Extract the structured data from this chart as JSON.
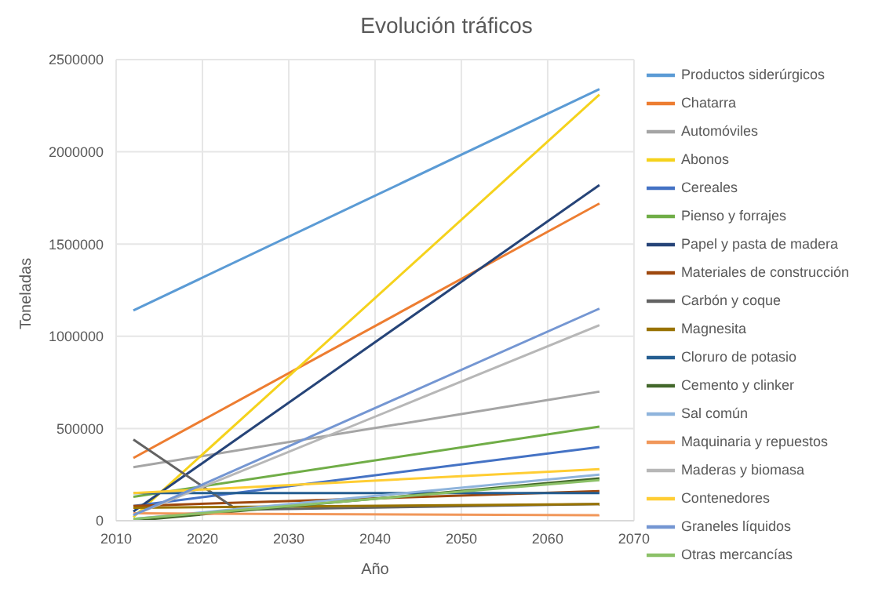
{
  "chart_data": {
    "type": "line",
    "title": "Evolución tráficos",
    "xlabel": "Año",
    "ylabel": "Toneladas",
    "x": [
      2012,
      2066
    ],
    "xlim": [
      2010,
      2070
    ],
    "xticks": [
      2010,
      2020,
      2030,
      2040,
      2050,
      2060,
      2070
    ],
    "ylim": [
      0,
      2500000
    ],
    "yticks": [
      0,
      500000,
      1000000,
      1500000,
      2000000,
      2500000
    ],
    "grid": true,
    "legend": "right",
    "marker": "none",
    "line_style": "solid",
    "series": [
      {
        "name": "Productos siderúrgicos",
        "color": "#5b9bd5",
        "values": [
          1140000,
          2340000
        ]
      },
      {
        "name": "Chatarra",
        "color": "#ed7d31",
        "values": [
          340000,
          1720000
        ]
      },
      {
        "name": "Automóviles",
        "color": "#a5a5a5",
        "values": [
          290000,
          700000
        ]
      },
      {
        "name": "Abonos",
        "color": "#f5d21c",
        "values": [
          20000,
          2310000
        ]
      },
      {
        "name": "Cereales",
        "color": "#4472c4",
        "values": [
          80000,
          400000
        ]
      },
      {
        "name": "Pienso y forrajes",
        "color": "#70ad47",
        "values": [
          130000,
          510000
        ]
      },
      {
        "name": "Papel y pasta de madera",
        "color": "#264478",
        "values": [
          50000,
          1820000
        ]
      },
      {
        "name": "Materiales de construcción",
        "color": "#9e480e",
        "values": [
          80000,
          160000
        ]
      },
      {
        "name": "Carbón y coque",
        "color": "#636363",
        "x": [
          2012,
          2024,
          2066
        ],
        "values": [
          440000,
          60000,
          90000
        ]
      },
      {
        "name": "Magnesita",
        "color": "#997300",
        "values": [
          70000,
          90000
        ]
      },
      {
        "name": "Cloruro de potasio",
        "color": "#255e91",
        "values": [
          150000,
          150000
        ]
      },
      {
        "name": "Cemento y clinker",
        "color": "#43682b",
        "values": [
          0,
          230000
        ]
      },
      {
        "name": "Sal común",
        "color": "#8fb4dc",
        "values": [
          10000,
          250000
        ]
      },
      {
        "name": "Maquinaria y repuestos",
        "color": "#f1975a",
        "values": [
          40000,
          30000
        ]
      },
      {
        "name": "Maderas y biomasa",
        "color": "#b7b7b7",
        "values": [
          30000,
          1060000
        ]
      },
      {
        "name": "Contenedores",
        "color": "#ffcd33",
        "values": [
          150000,
          280000
        ]
      },
      {
        "name": "Graneles líquidos",
        "color": "#7496d2",
        "values": [
          30000,
          1150000
        ]
      },
      {
        "name": "Otras mercancías",
        "color": "#8cc168",
        "values": [
          10000,
          220000
        ]
      }
    ]
  }
}
